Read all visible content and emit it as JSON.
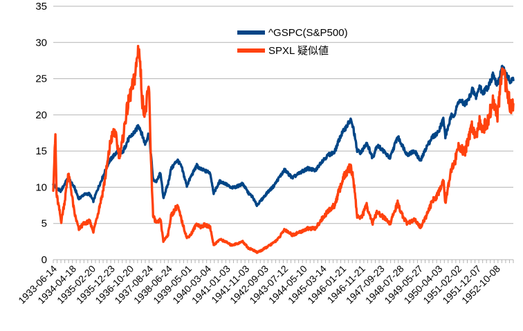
{
  "chart_data": {
    "type": "line",
    "title": "",
    "xlabel": "",
    "ylabel": "",
    "ylim": [
      0,
      35
    ],
    "yticks": [
      0,
      5,
      10,
      15,
      20,
      25,
      30,
      35
    ],
    "grid": "horizontal",
    "legend_position": "top-center",
    "x_tick_labels": [
      "1933-06-14",
      "1934-04-18",
      "1935-02-20",
      "1935-12-23",
      "1936-10-20",
      "1937-08-24",
      "1938-06-24",
      "1939-05-01",
      "1940-03-04",
      "1941-01-03",
      "1941-11-03",
      "1942-09-03",
      "1943-07-12",
      "1944-05-10",
      "1945-03-14",
      "1946-01-21",
      "1946-11-21",
      "1947-09-23",
      "1948-07-28",
      "1949-05-27",
      "1950-04-03",
      "1951-02-02",
      "1951-12-07",
      "1952-10-08"
    ],
    "x_end": "1953-06-30",
    "series": [
      {
        "name": "^GSPC(S&P500)",
        "color": "#004586",
        "points": [
          [
            "1933-06-14",
            10.5
          ],
          [
            "1933-08-01",
            9.8
          ],
          [
            "1933-10-15",
            9.5
          ],
          [
            "1934-01-10",
            10.9
          ],
          [
            "1934-02-10",
            11.2
          ],
          [
            "1934-05-15",
            10.0
          ],
          [
            "1934-07-26",
            8.4
          ],
          [
            "1934-10-15",
            9.0
          ],
          [
            "1935-01-10",
            9.1
          ],
          [
            "1935-03-14",
            8.1
          ],
          [
            "1935-05-15",
            9.6
          ],
          [
            "1935-08-15",
            11.5
          ],
          [
            "1935-11-10",
            13.4
          ],
          [
            "1936-01-15",
            14.2
          ],
          [
            "1936-04-10",
            15.0
          ],
          [
            "1936-06-15",
            14.7
          ],
          [
            "1936-09-15",
            16.5
          ],
          [
            "1936-11-15",
            17.2
          ],
          [
            "1937-01-15",
            17.8
          ],
          [
            "1937-03-06",
            18.6
          ],
          [
            "1937-06-15",
            16.0
          ],
          [
            "1937-08-14",
            17.5
          ],
          [
            "1937-09-15",
            14.5
          ],
          [
            "1937-10-20",
            11.0
          ],
          [
            "1937-12-15",
            10.8
          ],
          [
            "1938-02-15",
            12.0
          ],
          [
            "1938-03-31",
            8.5
          ],
          [
            "1938-06-15",
            10.5
          ],
          [
            "1938-08-01",
            12.5
          ],
          [
            "1938-11-10",
            13.8
          ],
          [
            "1939-01-15",
            12.8
          ],
          [
            "1939-04-10",
            10.2
          ],
          [
            "1939-06-15",
            11.5
          ],
          [
            "1939-09-15",
            13.0
          ],
          [
            "1939-11-15",
            12.5
          ],
          [
            "1940-01-15",
            12.3
          ],
          [
            "1940-04-15",
            12.0
          ],
          [
            "1940-06-10",
            9.2
          ],
          [
            "1940-09-15",
            10.8
          ],
          [
            "1940-12-15",
            10.5
          ],
          [
            "1941-03-15",
            9.9
          ],
          [
            "1941-06-15",
            10.1
          ],
          [
            "1941-09-15",
            10.5
          ],
          [
            "1941-12-15",
            9.2
          ],
          [
            "1942-02-15",
            8.7
          ],
          [
            "1942-04-28",
            7.5
          ],
          [
            "1942-07-15",
            8.3
          ],
          [
            "1942-10-15",
            9.3
          ],
          [
            "1943-01-15",
            10.1
          ],
          [
            "1943-04-15",
            11.3
          ],
          [
            "1943-07-14",
            12.4
          ],
          [
            "1943-11-15",
            11.3
          ],
          [
            "1944-03-15",
            12.0
          ],
          [
            "1944-07-15",
            12.6
          ],
          [
            "1944-11-15",
            12.3
          ],
          [
            "1945-02-15",
            13.5
          ],
          [
            "1945-06-15",
            14.5
          ],
          [
            "1945-09-15",
            14.8
          ],
          [
            "1945-12-15",
            17.0
          ],
          [
            "1946-02-15",
            17.9
          ],
          [
            "1946-05-29",
            19.3
          ],
          [
            "1946-07-15",
            18.0
          ],
          [
            "1946-09-10",
            15.0
          ],
          [
            "1946-11-15",
            14.8
          ],
          [
            "1947-02-08",
            16.2
          ],
          [
            "1947-05-15",
            14.0
          ],
          [
            "1947-07-20",
            15.8
          ],
          [
            "1947-10-15",
            15.2
          ],
          [
            "1948-02-15",
            14.0
          ],
          [
            "1948-06-15",
            17.0
          ],
          [
            "1948-09-15",
            15.5
          ],
          [
            "1948-11-15",
            14.5
          ],
          [
            "1949-03-15",
            15.0
          ],
          [
            "1949-06-13",
            13.6
          ],
          [
            "1949-09-15",
            15.5
          ],
          [
            "1949-12-15",
            16.9
          ],
          [
            "1950-03-15",
            17.5
          ],
          [
            "1950-06-12",
            19.4
          ],
          [
            "1950-07-15",
            17.0
          ],
          [
            "1950-10-15",
            19.8
          ],
          [
            "1950-12-15",
            20.2
          ],
          [
            "1951-02-15",
            22.0
          ],
          [
            "1951-05-15",
            21.5
          ],
          [
            "1951-07-15",
            22.0
          ],
          [
            "1951-09-15",
            23.5
          ],
          [
            "1951-11-15",
            22.5
          ],
          [
            "1952-01-15",
            24.0
          ],
          [
            "1952-02-20",
            23.0
          ],
          [
            "1952-05-15",
            23.8
          ],
          [
            "1952-08-15",
            25.5
          ],
          [
            "1952-10-15",
            24.0
          ],
          [
            "1953-01-05",
            26.6
          ],
          [
            "1953-03-15",
            25.5
          ],
          [
            "1953-05-15",
            24.5
          ],
          [
            "1953-06-30",
            24.8
          ]
        ]
      },
      {
        "name": "SPXL 疑似値",
        "color": "#ff420e",
        "points": [
          [
            "1933-06-14",
            10.0
          ],
          [
            "1933-07-18",
            17.2
          ],
          [
            "1933-08-05",
            9.0
          ],
          [
            "1933-10-20",
            5.3
          ],
          [
            "1933-12-20",
            8.5
          ],
          [
            "1934-02-05",
            11.8
          ],
          [
            "1934-03-20",
            10.0
          ],
          [
            "1934-05-15",
            6.5
          ],
          [
            "1934-07-26",
            4.2
          ],
          [
            "1934-10-15",
            5.0
          ],
          [
            "1935-01-15",
            5.3
          ],
          [
            "1935-03-14",
            3.9
          ],
          [
            "1935-05-15",
            6.0
          ],
          [
            "1935-08-15",
            9.5
          ],
          [
            "1935-10-20",
            13.0
          ],
          [
            "1935-12-15",
            16.5
          ],
          [
            "1936-02-15",
            17.8
          ],
          [
            "1936-04-28",
            14.5
          ],
          [
            "1936-06-15",
            16.0
          ],
          [
            "1936-08-15",
            20.0
          ],
          [
            "1936-10-15",
            22.5
          ],
          [
            "1936-12-15",
            24.5
          ],
          [
            "1937-01-15",
            26.0
          ],
          [
            "1937-03-06",
            29.8
          ],
          [
            "1937-05-01",
            22.0
          ],
          [
            "1937-06-15",
            20.0
          ],
          [
            "1937-08-14",
            24.0
          ],
          [
            "1937-09-15",
            14.0
          ],
          [
            "1937-10-20",
            6.0
          ],
          [
            "1937-12-15",
            5.0
          ],
          [
            "1938-02-15",
            5.5
          ],
          [
            "1938-03-31",
            2.5
          ],
          [
            "1938-06-15",
            3.5
          ],
          [
            "1938-08-01",
            6.0
          ],
          [
            "1938-11-10",
            7.5
          ],
          [
            "1939-01-15",
            5.5
          ],
          [
            "1939-04-10",
            3.0
          ],
          [
            "1939-06-15",
            3.5
          ],
          [
            "1939-09-15",
            5.0
          ],
          [
            "1939-11-15",
            4.5
          ],
          [
            "1940-01-15",
            4.8
          ],
          [
            "1940-04-15",
            4.5
          ],
          [
            "1940-06-10",
            2.0
          ],
          [
            "1940-09-15",
            2.8
          ],
          [
            "1940-12-15",
            2.5
          ],
          [
            "1941-03-15",
            2.0
          ],
          [
            "1941-06-15",
            2.2
          ],
          [
            "1941-09-15",
            2.5
          ],
          [
            "1941-12-15",
            1.6
          ],
          [
            "1942-02-15",
            1.4
          ],
          [
            "1942-04-28",
            1.0
          ],
          [
            "1942-07-15",
            1.3
          ],
          [
            "1942-10-15",
            1.8
          ],
          [
            "1943-01-15",
            2.3
          ],
          [
            "1943-04-15",
            3.0
          ],
          [
            "1943-07-14",
            4.2
          ],
          [
            "1943-11-15",
            3.4
          ],
          [
            "1944-03-15",
            3.8
          ],
          [
            "1944-07-15",
            4.3
          ],
          [
            "1944-11-15",
            4.3
          ],
          [
            "1945-02-15",
            5.5
          ],
          [
            "1945-06-15",
            6.8
          ],
          [
            "1945-09-15",
            7.5
          ],
          [
            "1945-12-15",
            10.0
          ],
          [
            "1946-02-15",
            11.5
          ],
          [
            "1946-05-29",
            12.8
          ],
          [
            "1946-07-15",
            11.0
          ],
          [
            "1946-09-10",
            6.0
          ],
          [
            "1946-11-15",
            5.8
          ],
          [
            "1947-02-08",
            7.5
          ],
          [
            "1947-05-15",
            5.0
          ],
          [
            "1947-07-20",
            6.5
          ],
          [
            "1947-10-15",
            6.0
          ],
          [
            "1948-02-15",
            5.0
          ],
          [
            "1948-06-15",
            7.8
          ],
          [
            "1948-09-15",
            5.8
          ],
          [
            "1948-11-15",
            5.0
          ],
          [
            "1949-03-15",
            5.5
          ],
          [
            "1949-06-13",
            4.5
          ],
          [
            "1949-09-15",
            6.0
          ],
          [
            "1949-12-15",
            8.0
          ],
          [
            "1950-03-15",
            9.0
          ],
          [
            "1950-06-12",
            11.0
          ],
          [
            "1950-07-15",
            8.0
          ],
          [
            "1950-10-15",
            12.5
          ],
          [
            "1950-12-15",
            13.5
          ],
          [
            "1951-02-15",
            16.0
          ],
          [
            "1951-05-15",
            14.5
          ],
          [
            "1951-07-15",
            16.5
          ],
          [
            "1951-09-15",
            18.5
          ],
          [
            "1951-11-15",
            17.0
          ],
          [
            "1952-01-15",
            19.5
          ],
          [
            "1952-02-20",
            18.0
          ],
          [
            "1952-05-15",
            19.0
          ],
          [
            "1952-08-15",
            22.0
          ],
          [
            "1952-10-15",
            19.5
          ],
          [
            "1953-01-05",
            26.0
          ],
          [
            "1953-03-15",
            24.0
          ],
          [
            "1953-05-15",
            21.0
          ],
          [
            "1953-06-30",
            21.5
          ]
        ]
      }
    ]
  }
}
